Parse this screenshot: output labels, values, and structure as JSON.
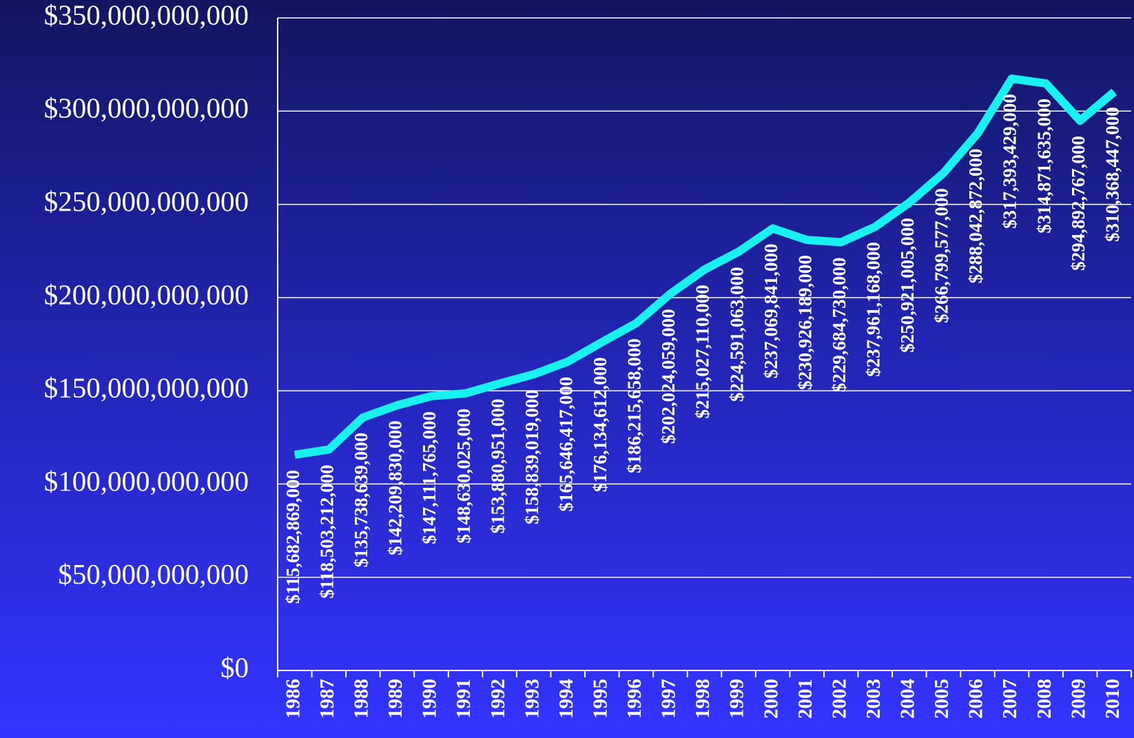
{
  "chart_data": {
    "type": "line",
    "categories": [
      "1986",
      "1987",
      "1988",
      "1989",
      "1990",
      "1991",
      "1992",
      "1993",
      "1994",
      "1995",
      "1996",
      "1997",
      "1998",
      "1999",
      "2000",
      "2001",
      "2002",
      "2003",
      "2004",
      "2005",
      "2006",
      "2007",
      "2008",
      "2009",
      "2010"
    ],
    "series": [
      {
        "color": "#19f0f0",
        "values": [
          115682869000,
          118503212000,
          135738639000,
          142209830000,
          147111765000,
          148630025000,
          153880951000,
          158839019000,
          165646417000,
          176134612000,
          186215658000,
          202024059000,
          215027110000,
          224591063000,
          237069841000,
          230926189000,
          229684730000,
          237961168000,
          250921005000,
          266799577000,
          288042872000,
          317393429000,
          314871635000,
          294892767000,
          310368447000
        ],
        "value_labels": [
          "$115,682,869,000",
          "$118,503,212,000",
          "$135,738,639,000",
          "$142,209,830,000",
          "$147,111,765,000",
          "$148,630,025,000",
          "$153,880,951,000",
          "$158,839,019,000",
          "$165,646,417,000",
          "$176,134,612,000",
          "$186,215,658,000",
          "$202,024,059,000",
          "$215,027,110,000",
          "$224,591,063,000",
          "$237,069,841,000",
          "$230,926,189,000",
          "$229,684,730,000",
          "$237,961,168,000",
          "$250,921,005,000",
          "$266,799,577,000",
          "$288,042,872,000",
          "$317,393,429,000",
          "$314,871,635,000",
          "$294,892,767,000",
          "$310,368,447,000"
        ]
      }
    ],
    "ylim": [
      0,
      350000000000
    ],
    "yticks": [
      {
        "value": 0,
        "label": "$0"
      },
      {
        "value": 50000000000,
        "label": "$50,000,000,000"
      },
      {
        "value": 100000000000,
        "label": "$100,000,000,000"
      },
      {
        "value": 150000000000,
        "label": "$150,000,000,000"
      },
      {
        "value": 200000000000,
        "label": "$200,000,000,000"
      },
      {
        "value": 250000000000,
        "label": "$250,000,000,000"
      },
      {
        "value": 300000000000,
        "label": "$300,000,000,000"
      },
      {
        "value": 350000000000,
        "label": "$350,000,000,000"
      }
    ],
    "grid": true
  }
}
